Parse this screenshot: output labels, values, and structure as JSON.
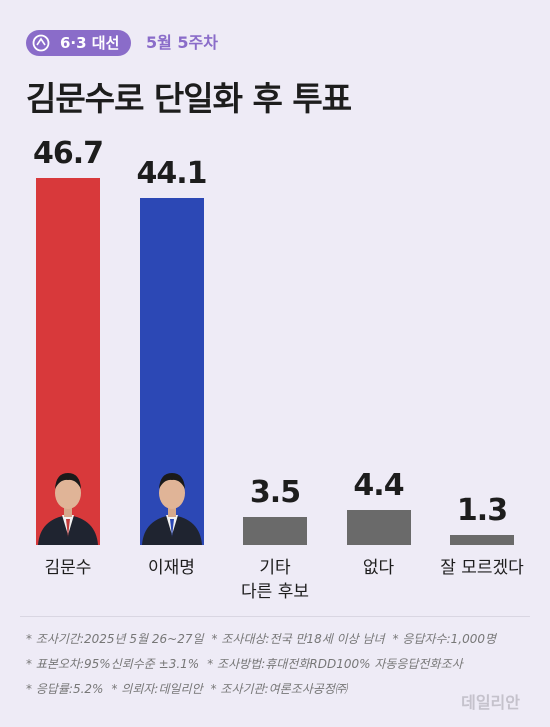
{
  "chart_data": {
    "type": "bar",
    "badge": "6·3 대선",
    "week": "5월 5주차",
    "title": "김문수로 단일화 후 투표",
    "categories": [
      "김문수",
      "이재명",
      "기타\n다른 후보",
      "없다",
      "잘 모르겠다"
    ],
    "values": [
      46.7,
      44.1,
      3.5,
      4.4,
      1.3
    ],
    "colors": [
      "#d8393b",
      "#2c48b5",
      "#6a6a6a",
      "#6a6a6a",
      "#6a6a6a"
    ],
    "notes": [
      [
        "* 조사기간:2025년 5월 26~27일",
        "* 조사대상:전국 만18세 이상 남녀",
        "* 응답자수:1,000명"
      ],
      [
        "* 표본오차:95%신뢰수준 ±3.1%",
        "* 조사방법:휴대전화RDD100% 자동응답전화조사"
      ],
      [
        "* 응답률:5.2%",
        "* 의뢰자:데일리안",
        "* 조사기관:여론조사공정㈜"
      ]
    ],
    "watermark": "데일리안"
  }
}
